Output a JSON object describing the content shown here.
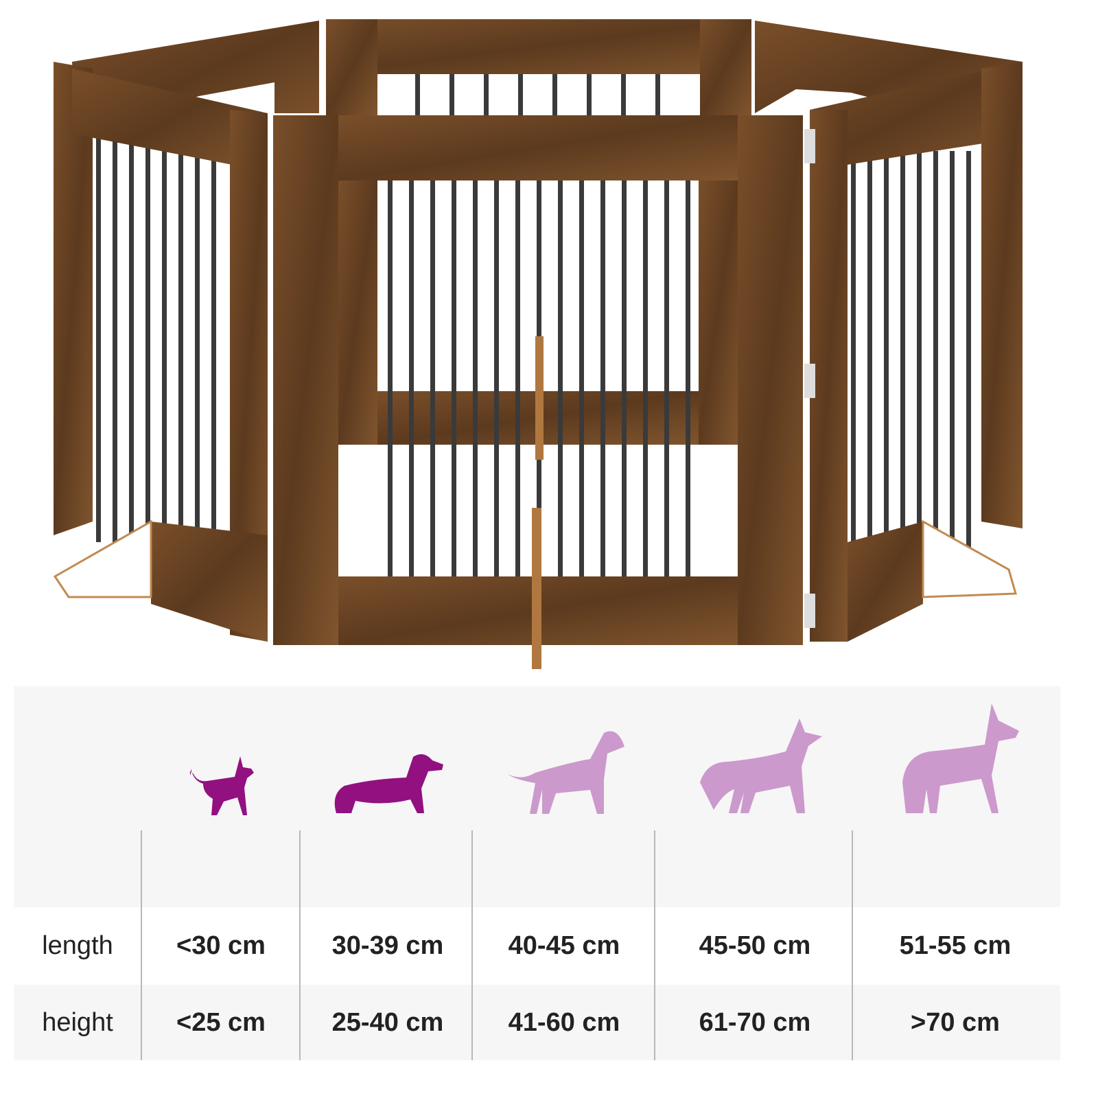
{
  "colors": {
    "wood": "#6b4424",
    "bars": "#3a3a3a",
    "dog_dark": "#921080",
    "dog_light": "#cc99cc",
    "panel_bg": "#f6f6f6"
  },
  "product_image": "wooden dog gate with metal bars",
  "size_table": {
    "row_labels": [
      "length",
      "height"
    ],
    "columns": [
      {
        "dog_icon": "chihuahua-icon",
        "highlighted": true,
        "length": "<30 cm",
        "height": "<25 cm"
      },
      {
        "dog_icon": "dachshund-icon",
        "highlighted": true,
        "length": "30-39 cm",
        "height": "25-40 cm"
      },
      {
        "dog_icon": "bull-terrier-icon",
        "highlighted": false,
        "length": "40-45 cm",
        "height": "41-60 cm"
      },
      {
        "dog_icon": "shepherd-icon",
        "highlighted": false,
        "length": "45-50 cm",
        "height": "61-70 cm"
      },
      {
        "dog_icon": "great-dane-icon",
        "highlighted": false,
        "length": "51-55 cm",
        "height": ">70 cm"
      }
    ]
  }
}
